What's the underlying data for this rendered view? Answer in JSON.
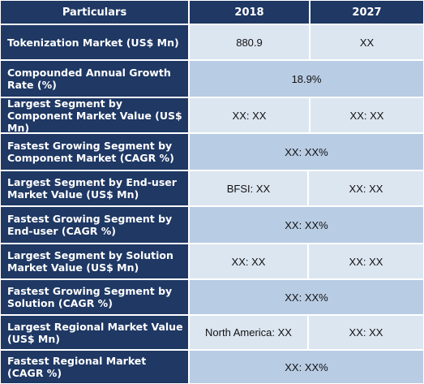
{
  "header": {
    "col1": "Particulars",
    "col2": "2018",
    "col3": "2027"
  },
  "rows": [
    {
      "label": "Tokenization Market (US$ Mn)",
      "v2018": "880.9",
      "v2027": "XX",
      "merged": false
    },
    {
      "label": "Compounded Annual Growth Rate (%)",
      "merged_value": "18.9%",
      "merged": true
    },
    {
      "label": "Largest Segment by Component Market Value (US$ Mn)",
      "v2018": "XX: XX",
      "v2027": "XX: XX",
      "merged": false
    },
    {
      "label": "Fastest Growing Segment by Component Market (CAGR %)",
      "merged_value": "XX: XX%",
      "merged": true
    },
    {
      "label": "Largest Segment by End-user Market Value (US$ Mn)",
      "v2018": "BFSI: XX",
      "v2027": "XX: XX",
      "merged": false
    },
    {
      "label": "Fastest Growing Segment by End-user (CAGR %)",
      "merged_value": "XX: XX%",
      "merged": true
    },
    {
      "label": "Largest Segment by Solution Market Value (US$ Mn)",
      "v2018": "XX: XX",
      "v2027": "XX: XX",
      "merged": false
    },
    {
      "label": "Fastest Growing Segment by Solution (CAGR %)",
      "merged_value": "XX: XX%",
      "merged": true
    },
    {
      "label": "Largest Regional Market Value (US$ Mn)",
      "v2018": "North America: XX",
      "v2027": "XX: XX",
      "merged": false
    },
    {
      "label": "Fastest Regional Market (CAGR %)",
      "merged_value": "XX: XX%",
      "merged": true
    }
  ]
}
